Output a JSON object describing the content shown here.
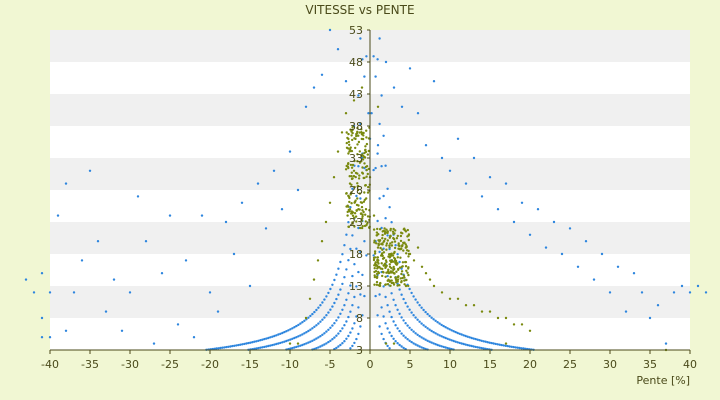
{
  "chart_data": {
    "type": "scatter",
    "title": "VITESSE vs PENTE",
    "xlabel": "Pente [%]",
    "ylabel": "",
    "xlim": [
      -40,
      40
    ],
    "ylim": [
      3,
      53
    ],
    "x_ticks": [
      -40,
      -35,
      -30,
      -25,
      -20,
      -15,
      -10,
      -5,
      0,
      5,
      10,
      15,
      20,
      25,
      30,
      35,
      40
    ],
    "y_ticks": [
      3,
      8,
      13,
      18,
      23,
      28,
      33,
      38,
      43,
      48,
      53
    ],
    "x_tick_labels": [
      "-40",
      "-35",
      "-30",
      "-25",
      "-20",
      "-15",
      "-10",
      "-5",
      "0",
      "5",
      "10",
      "15",
      "20",
      "25",
      "30",
      "35",
      "40"
    ],
    "y_tick_labels": [
      "3",
      "8",
      "13",
      "18",
      "23",
      "28",
      "33",
      "38",
      "43",
      "48",
      "53"
    ],
    "grid": "horizontal bands",
    "legend": "none",
    "colors": {
      "background": "#f1f7d3",
      "band_light": "#ffffff",
      "band_dark": "#f0f0f0",
      "axis": "#4a4a1a",
      "series_1": "#2e86de",
      "series_2": "#7a8a10"
    },
    "series": [
      {
        "marker_color": "#2e86de",
        "marker": "small dot",
        "curve_constants": [
          8,
          14,
          22,
          32,
          46,
          62
        ],
        "points": [
          [
            -42,
            12
          ],
          [
            -41,
            5
          ],
          [
            -41,
            8
          ],
          [
            -40,
            12
          ],
          [
            -40,
            5
          ],
          [
            -39,
            24
          ],
          [
            -38,
            29
          ],
          [
            -37,
            12
          ],
          [
            -36,
            17
          ],
          [
            -35,
            31
          ],
          [
            -34,
            20
          ],
          [
            -33,
            9
          ],
          [
            -32,
            14
          ],
          [
            -31,
            6
          ],
          [
            -30,
            12
          ],
          [
            -29,
            27
          ],
          [
            -28,
            20
          ],
          [
            -27,
            4
          ],
          [
            -26,
            15
          ],
          [
            -25,
            24
          ],
          [
            -24,
            7
          ],
          [
            -23,
            17
          ],
          [
            -22,
            5
          ],
          [
            -21,
            24
          ],
          [
            -20,
            12
          ],
          [
            -19,
            9
          ],
          [
            -18,
            23
          ],
          [
            -17,
            18
          ],
          [
            -16,
            26
          ],
          [
            -15,
            13
          ],
          [
            -14,
            29
          ],
          [
            -13,
            22
          ],
          [
            -12,
            31
          ],
          [
            -11,
            25
          ],
          [
            -10,
            34
          ],
          [
            -9,
            28
          ],
          [
            -8,
            41
          ],
          [
            -7,
            44
          ],
          [
            -6,
            46
          ],
          [
            -5,
            53
          ],
          [
            -4,
            50
          ],
          [
            -3,
            45
          ],
          [
            -2,
            38
          ],
          [
            -1,
            33
          ],
          [
            0,
            36
          ],
          [
            1,
            35
          ],
          [
            2,
            48
          ],
          [
            3,
            44
          ],
          [
            4,
            41
          ],
          [
            5,
            47
          ],
          [
            6,
            40
          ],
          [
            7,
            35
          ],
          [
            8,
            45
          ],
          [
            9,
            33
          ],
          [
            10,
            31
          ],
          [
            11,
            36
          ],
          [
            12,
            29
          ],
          [
            13,
            33
          ],
          [
            14,
            27
          ],
          [
            15,
            30
          ],
          [
            16,
            25
          ],
          [
            17,
            29
          ],
          [
            18,
            23
          ],
          [
            19,
            26
          ],
          [
            20,
            21
          ],
          [
            21,
            25
          ],
          [
            22,
            19
          ],
          [
            23,
            23
          ],
          [
            24,
            18
          ],
          [
            25,
            22
          ],
          [
            26,
            16
          ],
          [
            27,
            20
          ],
          [
            28,
            14
          ],
          [
            29,
            18
          ],
          [
            30,
            12
          ],
          [
            31,
            16
          ],
          [
            32,
            9
          ],
          [
            33,
            15
          ],
          [
            34,
            12
          ],
          [
            35,
            8
          ],
          [
            36,
            10
          ],
          [
            37,
            4
          ],
          [
            38,
            12
          ],
          [
            39,
            13
          ],
          [
            40,
            12
          ],
          [
            41,
            13
          ],
          [
            42,
            12
          ],
          [
            -43,
            14
          ],
          [
            -41,
            15
          ],
          [
            -38,
            6
          ]
        ]
      },
      {
        "marker_color": "#7a8a10",
        "marker": "small dot",
        "points": [
          [
            -8,
            8
          ],
          [
            -7.5,
            11
          ],
          [
            -7,
            14
          ],
          [
            -6.5,
            17
          ],
          [
            -6,
            20
          ],
          [
            -5.5,
            23
          ],
          [
            -5,
            26
          ],
          [
            -4.5,
            30
          ],
          [
            -4,
            34
          ],
          [
            -3.5,
            37
          ],
          [
            -3,
            40
          ],
          [
            -2.5,
            29
          ],
          [
            -2,
            31
          ],
          [
            -1.5,
            28
          ],
          [
            -1,
            26
          ],
          [
            -0.5,
            25
          ],
          [
            0,
            30
          ],
          [
            0.5,
            24
          ],
          [
            1,
            19
          ],
          [
            1.5,
            18
          ],
          [
            2,
            17
          ],
          [
            2.5,
            16
          ],
          [
            3,
            15
          ],
          [
            3.5,
            14
          ],
          [
            4,
            16
          ],
          [
            4.5,
            13
          ],
          [
            5,
            18
          ],
          [
            5.5,
            17
          ],
          [
            6,
            19
          ],
          [
            6.5,
            16
          ],
          [
            7,
            15
          ],
          [
            7.5,
            14
          ],
          [
            8,
            13
          ],
          [
            9,
            12
          ],
          [
            10,
            11
          ],
          [
            11,
            11
          ],
          [
            12,
            10
          ],
          [
            13,
            10
          ],
          [
            14,
            9
          ],
          [
            15,
            9
          ],
          [
            16,
            8
          ],
          [
            17,
            8
          ],
          [
            18,
            7
          ],
          [
            19,
            7
          ],
          [
            20,
            6
          ],
          [
            -9,
            4
          ],
          [
            -10,
            4
          ],
          [
            2,
            4
          ],
          [
            3,
            4
          ],
          [
            17,
            4
          ],
          [
            37,
            3
          ],
          [
            -1,
            44
          ],
          [
            -2,
            42
          ],
          [
            1,
            41
          ]
        ]
      }
    ]
  }
}
